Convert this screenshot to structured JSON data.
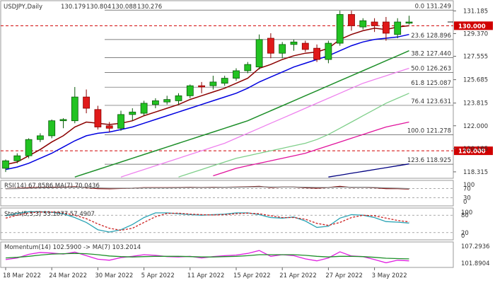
{
  "chart_data": [
    {
      "type": "candlestick",
      "title": "USDJPY,Daily",
      "ohlc_readout": [
        "130.179",
        "130.804",
        "130.088",
        "130.276"
      ],
      "ylim": [
        117.8,
        132.0
      ],
      "y_ticks": [
        "131.185",
        "129.370",
        "127.555",
        "125.685",
        "123.815",
        "122.000",
        "120.185",
        "118.315"
      ],
      "x_labels": [
        "18 Mar 2022",
        "24 Mar 2022",
        "30 Mar 2022",
        "5 Apr 2022",
        "11 Apr 2022",
        "15 Apr 2022",
        "21 Apr 2022",
        "27 Apr 2022",
        "3 May 2022"
      ],
      "x_label_index": [
        0,
        4,
        8,
        12,
        16,
        20,
        24,
        28,
        32
      ],
      "candles": [
        {
          "o": 118.6,
          "h": 119.3,
          "l": 118.3,
          "c": 119.2
        },
        {
          "o": 119.2,
          "h": 119.8,
          "l": 119.0,
          "c": 119.6
        },
        {
          "o": 119.6,
          "h": 121.0,
          "l": 119.4,
          "c": 120.9
        },
        {
          "o": 120.9,
          "h": 121.4,
          "l": 120.7,
          "c": 121.2
        },
        {
          "o": 121.2,
          "h": 122.5,
          "l": 121.0,
          "c": 122.4
        },
        {
          "o": 122.4,
          "h": 122.6,
          "l": 121.8,
          "c": 122.5
        },
        {
          "o": 122.4,
          "h": 125.1,
          "l": 122.2,
          "c": 124.3
        },
        {
          "o": 124.3,
          "h": 124.9,
          "l": 123.0,
          "c": 123.4
        },
        {
          "o": 123.3,
          "h": 123.6,
          "l": 121.7,
          "c": 121.9
        },
        {
          "o": 122.0,
          "h": 122.3,
          "l": 121.5,
          "c": 121.8
        },
        {
          "o": 121.8,
          "h": 123.2,
          "l": 121.6,
          "c": 122.9
        },
        {
          "o": 122.9,
          "h": 123.4,
          "l": 122.4,
          "c": 123.1
        },
        {
          "o": 123.0,
          "h": 124.0,
          "l": 122.8,
          "c": 123.8
        },
        {
          "o": 123.7,
          "h": 124.2,
          "l": 123.4,
          "c": 124.0
        },
        {
          "o": 123.9,
          "h": 124.4,
          "l": 123.7,
          "c": 124.1
        },
        {
          "o": 124.0,
          "h": 124.6,
          "l": 123.7,
          "c": 124.4
        },
        {
          "o": 124.4,
          "h": 125.3,
          "l": 124.2,
          "c": 125.2
        },
        {
          "o": 125.2,
          "h": 125.5,
          "l": 124.6,
          "c": 125.1
        },
        {
          "o": 125.2,
          "h": 126.0,
          "l": 124.9,
          "c": 125.5
        },
        {
          "o": 125.4,
          "h": 126.0,
          "l": 125.2,
          "c": 125.8
        },
        {
          "o": 125.8,
          "h": 126.6,
          "l": 125.6,
          "c": 126.4
        },
        {
          "o": 126.4,
          "h": 127.1,
          "l": 126.2,
          "c": 126.9
        },
        {
          "o": 126.7,
          "h": 129.3,
          "l": 126.5,
          "c": 128.9
        },
        {
          "o": 129.0,
          "h": 129.4,
          "l": 127.4,
          "c": 127.8
        },
        {
          "o": 127.8,
          "h": 128.7,
          "l": 127.4,
          "c": 128.5
        },
        {
          "o": 128.5,
          "h": 128.9,
          "l": 128.0,
          "c": 128.7
        },
        {
          "o": 128.6,
          "h": 128.8,
          "l": 127.9,
          "c": 128.1
        },
        {
          "o": 128.2,
          "h": 128.5,
          "l": 127.1,
          "c": 127.3
        },
        {
          "o": 127.3,
          "h": 128.8,
          "l": 127.0,
          "c": 128.6
        },
        {
          "o": 128.6,
          "h": 131.2,
          "l": 128.4,
          "c": 130.9
        },
        {
          "o": 130.9,
          "h": 131.2,
          "l": 129.6,
          "c": 130.0
        },
        {
          "o": 129.9,
          "h": 130.6,
          "l": 129.7,
          "c": 130.4
        },
        {
          "o": 130.3,
          "h": 130.6,
          "l": 129.5,
          "c": 130.0
        },
        {
          "o": 130.3,
          "h": 130.7,
          "l": 128.8,
          "c": 129.4
        },
        {
          "o": 129.3,
          "h": 130.6,
          "l": 129.0,
          "c": 130.3
        },
        {
          "o": 130.2,
          "h": 130.8,
          "l": 130.1,
          "c": 130.3
        }
      ],
      "moving_averages": [
        {
          "color": "#8b0000",
          "values": [
            118.9,
            119.1,
            119.6,
            120.1,
            120.7,
            121.2,
            121.9,
            122.3,
            122.2,
            122.1,
            122.2,
            122.4,
            122.8,
            123.1,
            123.4,
            123.7,
            124.1,
            124.4,
            124.7,
            125.0,
            125.4,
            125.8,
            126.6,
            126.9,
            127.3,
            127.6,
            127.8,
            127.9,
            128.2,
            128.9,
            129.3,
            129.6,
            129.8,
            129.7,
            129.9,
            130.0
          ]
        },
        {
          "color": "#0000e0",
          "values": [
            118.5,
            118.7,
            119.0,
            119.4,
            119.8,
            120.3,
            120.8,
            121.2,
            121.4,
            121.5,
            121.7,
            121.9,
            122.2,
            122.5,
            122.8,
            123.1,
            123.4,
            123.7,
            124.0,
            124.3,
            124.6,
            125.0,
            125.5,
            125.9,
            126.3,
            126.7,
            127.0,
            127.3,
            127.6,
            128.0,
            128.4,
            128.7,
            128.9,
            129.0,
            129.1,
            129.3
          ]
        },
        {
          "color": "#1e8f2a",
          "values": [
            null,
            null,
            null,
            null,
            null,
            null,
            117.9,
            118.2,
            118.5,
            118.8,
            119.1,
            119.4,
            119.7,
            120.0,
            120.3,
            120.6,
            120.9,
            121.2,
            121.5,
            121.8,
            122.1,
            122.4,
            122.8,
            123.2,
            123.6,
            124.0,
            124.4,
            124.8,
            125.2,
            125.6,
            126.0,
            126.4,
            126.8,
            127.2,
            127.6,
            128.0
          ]
        },
        {
          "color": "#ee82ee",
          "values": [
            null,
            null,
            null,
            null,
            null,
            null,
            null,
            null,
            null,
            null,
            117.9,
            118.2,
            118.5,
            118.8,
            119.1,
            119.4,
            119.7,
            120.0,
            120.3,
            120.6,
            121.0,
            121.4,
            121.8,
            122.2,
            122.6,
            123.0,
            123.4,
            123.8,
            124.2,
            124.6,
            125.0,
            125.4,
            125.7,
            126.0,
            126.3,
            126.6
          ]
        },
        {
          "color": "#7fcf8a",
          "values": [
            null,
            null,
            null,
            null,
            null,
            null,
            null,
            null,
            null,
            null,
            null,
            null,
            null,
            null,
            null,
            117.9,
            118.2,
            118.5,
            118.8,
            119.1,
            119.4,
            119.6,
            119.8,
            120.0,
            120.2,
            120.4,
            120.6,
            120.9,
            121.3,
            121.8,
            122.3,
            122.8,
            123.3,
            123.8,
            124.2,
            124.6
          ]
        },
        {
          "color": "#e0139c",
          "values": [
            null,
            null,
            null,
            null,
            null,
            null,
            null,
            null,
            null,
            null,
            null,
            null,
            null,
            null,
            null,
            null,
            null,
            null,
            118.0,
            118.3,
            118.6,
            118.8,
            119.0,
            119.2,
            119.4,
            119.6,
            119.8,
            120.1,
            120.4,
            120.7,
            121.0,
            121.3,
            121.6,
            121.9,
            122.1,
            122.3
          ]
        },
        {
          "color": "#000080",
          "values": [
            null,
            null,
            null,
            null,
            null,
            null,
            null,
            null,
            null,
            null,
            null,
            null,
            null,
            null,
            null,
            null,
            null,
            null,
            null,
            null,
            null,
            null,
            null,
            null,
            null,
            null,
            null,
            null,
            117.9,
            118.05,
            118.2,
            118.35,
            118.5,
            118.65,
            118.8,
            118.95
          ]
        }
      ],
      "fibonacci_levels": [
        {
          "label": "0.0 131.249",
          "value": 131.249
        },
        {
          "label": "23.6 128.896",
          "value": 128.896
        },
        {
          "label": "38.2 127.440",
          "value": 127.44
        },
        {
          "label": "50.0 126.263",
          "value": 126.263
        },
        {
          "label": "61.8 125.087",
          "value": 125.087
        },
        {
          "label": "76.4 123.631",
          "value": 123.631
        },
        {
          "label": "100.0 121.278",
          "value": 121.278
        },
        {
          "label": "123.6 118.925",
          "value": 118.925
        }
      ],
      "horizontal_markers": [
        {
          "label": "130.000",
          "value": 130.0,
          "color": "#d00000"
        },
        {
          "label": "120.000",
          "value": 120.0,
          "color": "#d00000"
        }
      ],
      "current_price_label": "130.276"
    },
    {
      "type": "line",
      "title": "RSI(14) 67.8586 MA(7) 70.0436",
      "ylim": [
        0,
        100
      ],
      "y_ticks": [
        "100",
        "70",
        "30",
        "0"
      ],
      "reference_lines": [
        70,
        30
      ],
      "series": [
        {
          "color": "#8b0000",
          "values": [
            70,
            71,
            74,
            75,
            76,
            76,
            78,
            74,
            70,
            69,
            71,
            72,
            74,
            74,
            74,
            75,
            76,
            75,
            76,
            76,
            77,
            78,
            80,
            75,
            77,
            77,
            74,
            72,
            75,
            80,
            75,
            76,
            74,
            70,
            70,
            68
          ]
        },
        {
          "color": "#888888",
          "values": [
            70,
            70,
            72,
            73,
            74,
            75,
            76,
            75,
            73,
            72,
            72,
            72,
            73,
            73,
            73,
            74,
            75,
            75,
            75,
            76,
            76,
            77,
            78,
            77,
            77,
            77,
            76,
            75,
            75,
            77,
            76,
            76,
            75,
            73,
            72,
            70
          ]
        }
      ]
    },
    {
      "type": "line",
      "title": "Stoch(5,3,3) 53.1077 57.4907",
      "ylim": [
        0,
        100
      ],
      "y_ticks": [
        "100",
        "80",
        "20",
        "0"
      ],
      "reference_lines": [
        80,
        20
      ],
      "series": [
        {
          "color": "#2aa3b4",
          "values": [
            78,
            86,
            92,
            92,
            90,
            85,
            72,
            55,
            30,
            22,
            30,
            48,
            72,
            88,
            88,
            85,
            82,
            80,
            82,
            84,
            88,
            88,
            82,
            72,
            70,
            74,
            60,
            38,
            42,
            70,
            82,
            80,
            72,
            58,
            56,
            53
          ]
        },
        {
          "color": "#cc2222",
          "values": [
            70,
            80,
            88,
            91,
            91,
            88,
            80,
            68,
            50,
            35,
            28,
            35,
            55,
            75,
            86,
            87,
            84,
            82,
            81,
            82,
            85,
            87,
            85,
            78,
            72,
            72,
            66,
            52,
            45,
            55,
            72,
            80,
            78,
            70,
            62,
            57
          ]
        }
      ]
    },
    {
      "type": "line",
      "title": "Momentum(14) 102.5900 -> MA(7) 103.2014",
      "ylim": [
        101.0,
        108.0
      ],
      "y_ticks": [
        "107.2936",
        "101.8904"
      ],
      "series": [
        {
          "color": "#e020e0",
          "values": [
            103.0,
            103.5,
            104.6,
            105.2,
            105.0,
            104.7,
            105.3,
            104.2,
            103.1,
            102.8,
            103.6,
            104.0,
            104.5,
            104.3,
            103.9,
            103.8,
            104.0,
            103.5,
            103.9,
            104.2,
            104.4,
            104.9,
            105.8,
            104.0,
            104.5,
            104.2,
            103.2,
            102.6,
            103.5,
            105.4,
            104.1,
            103.9,
            103.0,
            102.0,
            102.8,
            102.6
          ]
        },
        {
          "color": "#1e8f2a",
          "values": [
            103.5,
            103.7,
            104.0,
            104.4,
            104.7,
            104.8,
            104.9,
            104.8,
            104.5,
            104.1,
            103.9,
            103.8,
            103.9,
            104.0,
            104.0,
            104.0,
            103.9,
            103.8,
            103.8,
            103.9,
            104.0,
            104.2,
            104.5,
            104.5,
            104.5,
            104.5,
            104.3,
            104.0,
            103.8,
            104.0,
            104.0,
            103.9,
            103.7,
            103.4,
            103.3,
            103.2
          ]
        }
      ]
    }
  ]
}
